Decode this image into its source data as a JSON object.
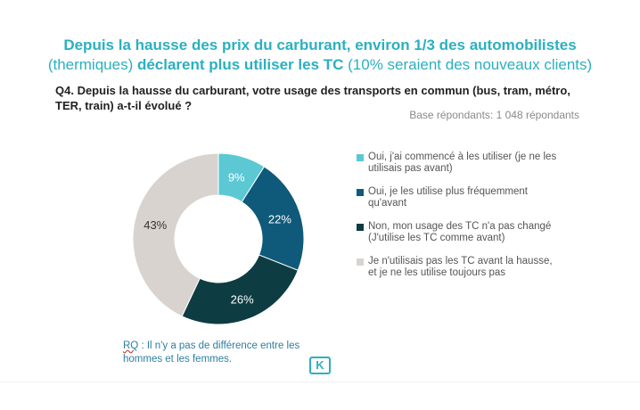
{
  "title": {
    "line1": "Depuis la hausse des prix du carburant, environ 1/3 des automobilistes",
    "line2_pre": "(thermiques) ",
    "line2_bold": "déclarent plus utiliser les TC",
    "line2_post": " (10% seraient des nouveaux clients)"
  },
  "question": "Q4. Depuis la hausse du carburant, votre usage des transports en commun (bus, tram, métro, TER, train) a-t-il évolué ?",
  "base": "Base répondants: 1 048 répondants",
  "note": {
    "prefix": "RQ",
    "text": " : Il n'y a pas de différence entre les hommes et les femmes."
  },
  "logo_letter": "K",
  "chart_data": {
    "type": "pie",
    "donut": true,
    "legend_position": "right",
    "slices": [
      {
        "label": "Oui, j'ai commencé à les utiliser (je ne les utilisais pas avant)",
        "value": 9,
        "display": "9%",
        "color": "#5bc8d4",
        "text_color": "#ffffff"
      },
      {
        "label": "Oui, je les utilise plus fréquemment qu'avant",
        "value": 22,
        "display": "22%",
        "color": "#0f5a7a",
        "text_color": "#ffffff"
      },
      {
        "label": "Non, mon usage des TC n'a pas changé (J'utilise les TC comme avant)",
        "value": 26,
        "display": "26%",
        "color": "#0d3c42",
        "text_color": "#ffffff"
      },
      {
        "label": "Je n'utilisais pas les TC avant la hausse, et je ne les utilise toujours pas",
        "value": 43,
        "display": "43%",
        "color": "#d8d3cf",
        "text_color": "#333333"
      }
    ]
  }
}
